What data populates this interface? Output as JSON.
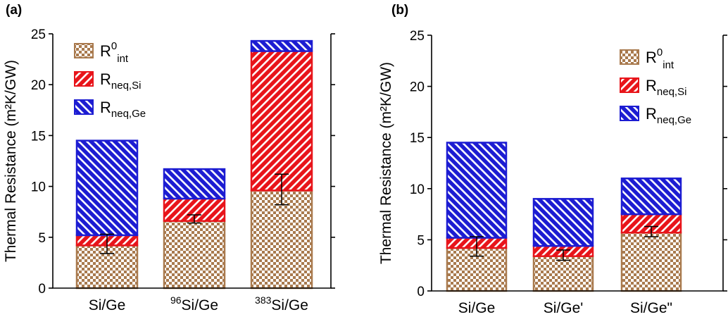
{
  "colors": {
    "intrinsic": "#a97a4e",
    "neq_si": "#e8141a",
    "neq_ge": "#1c1cd2",
    "axis": "#000000"
  },
  "chart_data": [
    {
      "type": "bar",
      "stacked": true,
      "panel_label": "(a)",
      "ylabel": "Thermal Resistance (m²K/GW)",
      "ylim": [
        0,
        25
      ],
      "yticks": [
        "0",
        "5",
        "10",
        "15",
        "20",
        "25"
      ],
      "categories": [
        {
          "sup": "",
          "base": "Si/Ge"
        },
        {
          "sup": "96",
          "base": "Si/Ge"
        },
        {
          "sup": "383",
          "base": "Si/Ge"
        }
      ],
      "series": [
        {
          "key": "intrinsic",
          "name": "R0int",
          "legend_main": "R",
          "legend_sup": "0",
          "legend_sub": "int",
          "values": [
            4.2,
            6.6,
            9.6
          ]
        },
        {
          "key": "neq_si",
          "name": "Rneq,Si",
          "legend_main": "R",
          "legend_sup": "",
          "legend_sub": "neq,Si",
          "values": [
            1.0,
            2.2,
            13.7
          ]
        },
        {
          "key": "neq_ge",
          "name": "Rneq,Ge",
          "legend_main": "R",
          "legend_sup": "",
          "legend_sub": "neq,Ge",
          "values": [
            9.3,
            2.9,
            1.0
          ]
        }
      ],
      "error_bars": [
        {
          "center": 4.3,
          "low": 3.4,
          "high": 5.3
        },
        {
          "center": 6.8,
          "low": 6.4,
          "high": 7.2
        },
        {
          "center": 9.7,
          "low": 8.2,
          "high": 11.2
        }
      ],
      "legend_position": "top-left"
    },
    {
      "type": "bar",
      "stacked": true,
      "panel_label": "(b)",
      "ylabel": "Thermal Resistance (m²K/GW)",
      "ylim": [
        0,
        25
      ],
      "yticks": [
        "0",
        "5",
        "10",
        "15",
        "20",
        "25"
      ],
      "categories": [
        {
          "sup": "",
          "base": "Si/Ge"
        },
        {
          "sup": "",
          "base": "Si/Ge'"
        },
        {
          "sup": "",
          "base": "Si/Ge\""
        }
      ],
      "series": [
        {
          "key": "intrinsic",
          "name": "R0int",
          "legend_main": "R",
          "legend_sup": "0",
          "legend_sub": "int",
          "values": [
            4.2,
            3.4,
            5.7
          ]
        },
        {
          "key": "neq_si",
          "name": "Rneq,Si",
          "legend_main": "R",
          "legend_sup": "",
          "legend_sub": "neq,Si",
          "values": [
            1.0,
            1.0,
            1.8
          ]
        },
        {
          "key": "neq_ge",
          "name": "Rneq,Ge",
          "legend_main": "R",
          "legend_sup": "",
          "legend_sub": "neq,Ge",
          "values": [
            9.3,
            4.6,
            3.5
          ]
        }
      ],
      "error_bars": [
        {
          "center": 4.3,
          "low": 3.4,
          "high": 5.3
        },
        {
          "center": 3.4,
          "low": 3.0,
          "high": 4.0
        },
        {
          "center": 5.8,
          "low": 5.3,
          "high": 6.3
        }
      ],
      "legend_position": "top-right"
    }
  ]
}
